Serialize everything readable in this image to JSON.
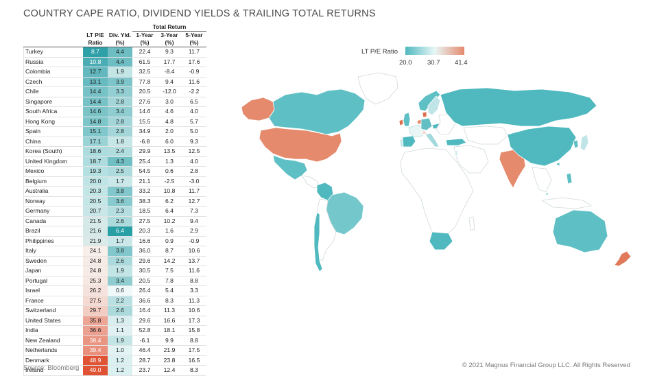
{
  "title": "COUNTRY CAPE RATIO, DIVIDEND YIELDS & TRAILING TOTAL RETURNS",
  "source": "Source: Bloomberg",
  "copyright": "© 2021 Magnus Financial Group LLC. All Rights Reserved",
  "table": {
    "group_header": "Total Return",
    "headers": {
      "pe_line1": "LT P/E",
      "pe_line2": "Ratio",
      "div_line1": "Div. Yld.",
      "div_line2": "(%)",
      "y1_line1": "1-Year",
      "y1_line2": "(%)",
      "y3_line1": "3-Year",
      "y3_line2": "(%)",
      "y5_line1": "5-Year",
      "y5_line2": "(%)"
    },
    "rows": [
      {
        "country": "Turkey",
        "pe": "8.7",
        "div": "4.4",
        "y1": "22.4",
        "y3": "9.3",
        "y5": "11.7"
      },
      {
        "country": "Russia",
        "pe": "10.8",
        "div": "4.4",
        "y1": "61.5",
        "y3": "17.7",
        "y5": "17.6"
      },
      {
        "country": "Colombia",
        "pe": "12.7",
        "div": "1.9",
        "y1": "32.5",
        "y3": "-8.4",
        "y5": "-0.9"
      },
      {
        "country": "Czech",
        "pe": "13.1",
        "div": "3.9",
        "y1": "77.8",
        "y3": "9.4",
        "y5": "11.6"
      },
      {
        "country": "Chile",
        "pe": "14.4",
        "div": "3.3",
        "y1": "20.5",
        "y3": "-12.0",
        "y5": "-2.2"
      },
      {
        "country": "Singapore",
        "pe": "14.4",
        "div": "2.8",
        "y1": "27.6",
        "y3": "3.0",
        "y5": "6.5"
      },
      {
        "country": "South Africa",
        "pe": "14.6",
        "div": "3.4",
        "y1": "14.6",
        "y3": "4.6",
        "y5": "4.0"
      },
      {
        "country": "Hong Kong",
        "pe": "14.8",
        "div": "2.8",
        "y1": "15.5",
        "y3": "4.8",
        "y5": "5.7"
      },
      {
        "country": "Spain",
        "pe": "15.1",
        "div": "2.8",
        "y1": "34.9",
        "y3": "2.0",
        "y5": "5.0"
      },
      {
        "country": "China",
        "pe": "17.1",
        "div": "1.8",
        "y1": "-6.8",
        "y3": "6.0",
        "y5": "9.3"
      },
      {
        "country": "Korea (South)",
        "pe": "18.6",
        "div": "2.4",
        "y1": "29.9",
        "y3": "13.5",
        "y5": "12.5"
      },
      {
        "country": "United Kingdom",
        "pe": "18.7",
        "div": "4.3",
        "y1": "25.4",
        "y3": "1.3",
        "y5": "4.0"
      },
      {
        "country": "Mexico",
        "pe": "19.3",
        "div": "2.5",
        "y1": "54.5",
        "y3": "0.6",
        "y5": "2.8"
      },
      {
        "country": "Belgium",
        "pe": "20.0",
        "div": "1.7",
        "y1": "21.1",
        "y3": "-2.5",
        "y5": "-3.0"
      },
      {
        "country": "Australia",
        "pe": "20.3",
        "div": "3.8",
        "y1": "33.2",
        "y3": "10.8",
        "y5": "11.7"
      },
      {
        "country": "Norway",
        "pe": "20.5",
        "div": "3.6",
        "y1": "38.3",
        "y3": "6.2",
        "y5": "12.7"
      },
      {
        "country": "Germany",
        "pe": "20.7",
        "div": "2.3",
        "y1": "18.5",
        "y3": "6.4",
        "y5": "7.3"
      },
      {
        "country": "Canada",
        "pe": "21.5",
        "div": "2.6",
        "y1": "27.5",
        "y3": "10.2",
        "y5": "9.4"
      },
      {
        "country": "Brazil",
        "pe": "21.6",
        "div": "6.4",
        "y1": "20.3",
        "y3": "1.6",
        "y5": "2.9"
      },
      {
        "country": "Philippines",
        "pe": "21.9",
        "div": "1.7",
        "y1": "16.6",
        "y3": "0.9",
        "y5": "-0.9"
      },
      {
        "country": "Italy",
        "pe": "24.1",
        "div": "3.8",
        "y1": "36.0",
        "y3": "8.7",
        "y5": "10.6"
      },
      {
        "country": "Sweden",
        "pe": "24.8",
        "div": "2.6",
        "y1": "29.6",
        "y3": "14.2",
        "y5": "13.7"
      },
      {
        "country": "Japan",
        "pe": "24.8",
        "div": "1.9",
        "y1": "30.5",
        "y3": "7.5",
        "y5": "11.6"
      },
      {
        "country": "Portugal",
        "pe": "25.3",
        "div": "3.4",
        "y1": "20.5",
        "y3": "7.8",
        "y5": "8.8"
      },
      {
        "country": "Israel",
        "pe": "26.2",
        "div": "0.6",
        "y1": "26.4",
        "y3": "5.4",
        "y5": "3.3"
      },
      {
        "country": "France",
        "pe": "27.5",
        "div": "2.2",
        "y1": "36.6",
        "y3": "8.3",
        "y5": "11.3"
      },
      {
        "country": "Switzerland",
        "pe": "29.7",
        "div": "2.6",
        "y1": "16.4",
        "y3": "11.3",
        "y5": "10.6"
      },
      {
        "country": "United States",
        "pe": "35.8",
        "div": "1.3",
        "y1": "29.6",
        "y3": "16.6",
        "y5": "17.3"
      },
      {
        "country": "India",
        "pe": "36.6",
        "div": "1.1",
        "y1": "52.8",
        "y3": "18.1",
        "y5": "15.8"
      },
      {
        "country": "New Zealand",
        "pe": "38.4",
        "div": "1.9",
        "y1": "-6.1",
        "y3": "9.9",
        "y5": "8.8"
      },
      {
        "country": "Netherlands",
        "pe": "39.4",
        "div": "1.0",
        "y1": "46.4",
        "y3": "21.9",
        "y5": "17.5"
      },
      {
        "country": "Denmark",
        "pe": "48.9",
        "div": "1.2",
        "y1": "28.7",
        "y3": "23.8",
        "y5": "16.5"
      },
      {
        "country": "Ireland",
        "pe": "49.0",
        "div": "1.2",
        "y1": "23.7",
        "y3": "12.4",
        "y5": "8.3"
      }
    ]
  },
  "map_legend": {
    "title": "LT P/E Ratio",
    "ticks": [
      "20.0",
      "30.7",
      "41.4"
    ],
    "min": 20.0,
    "mid": 30.7,
    "max": 41.4,
    "colors": {
      "low": "#4fb9bf",
      "mid": "#e8f6f6",
      "high": "#e58a6d"
    }
  },
  "chart_data": {
    "type": "table",
    "title": "COUNTRY CAPE RATIO, DIVIDEND YIELDS & TRAILING TOTAL RETURNS",
    "columns": [
      "LT P/E Ratio",
      "Div. Yld. (%)",
      "1-Year (%)",
      "3-Year (%)",
      "5-Year (%)"
    ],
    "rows": [
      "Turkey",
      "Russia",
      "Colombia",
      "Czech",
      "Chile",
      "Singapore",
      "South Africa",
      "Hong Kong",
      "Spain",
      "China",
      "Korea (South)",
      "United Kingdom",
      "Mexico",
      "Belgium",
      "Australia",
      "Norway",
      "Germany",
      "Canada",
      "Brazil",
      "Philippines",
      "Italy",
      "Sweden",
      "Japan",
      "Portugal",
      "Israel",
      "France",
      "Switzerland",
      "United States",
      "India",
      "New Zealand",
      "Netherlands",
      "Denmark",
      "Ireland"
    ],
    "values": [
      [
        8.7,
        4.4,
        22.4,
        9.3,
        11.7
      ],
      [
        10.8,
        4.4,
        61.5,
        17.7,
        17.6
      ],
      [
        12.7,
        1.9,
        32.5,
        -8.4,
        -0.9
      ],
      [
        13.1,
        3.9,
        77.8,
        9.4,
        11.6
      ],
      [
        14.4,
        3.3,
        20.5,
        -12.0,
        -2.2
      ],
      [
        14.4,
        2.8,
        27.6,
        3.0,
        6.5
      ],
      [
        14.6,
        3.4,
        14.6,
        4.6,
        4.0
      ],
      [
        14.8,
        2.8,
        15.5,
        4.8,
        5.7
      ],
      [
        15.1,
        2.8,
        34.9,
        2.0,
        5.0
      ],
      [
        17.1,
        1.8,
        -6.8,
        6.0,
        9.3
      ],
      [
        18.6,
        2.4,
        29.9,
        13.5,
        12.5
      ],
      [
        18.7,
        4.3,
        25.4,
        1.3,
        4.0
      ],
      [
        19.3,
        2.5,
        54.5,
        0.6,
        2.8
      ],
      [
        20.0,
        1.7,
        21.1,
        -2.5,
        -3.0
      ],
      [
        20.3,
        3.8,
        33.2,
        10.8,
        11.7
      ],
      [
        20.5,
        3.6,
        38.3,
        6.2,
        12.7
      ],
      [
        20.7,
        2.3,
        18.5,
        6.4,
        7.3
      ],
      [
        21.5,
        2.6,
        27.5,
        10.2,
        9.4
      ],
      [
        21.6,
        6.4,
        20.3,
        1.6,
        2.9
      ],
      [
        21.9,
        1.7,
        16.6,
        0.9,
        -0.9
      ],
      [
        24.1,
        3.8,
        36.0,
        8.7,
        10.6
      ],
      [
        24.8,
        2.6,
        29.6,
        14.2,
        13.7
      ],
      [
        24.8,
        1.9,
        30.5,
        7.5,
        11.6
      ],
      [
        25.3,
        3.4,
        20.5,
        7.8,
        8.8
      ],
      [
        26.2,
        0.6,
        26.4,
        5.4,
        3.3
      ],
      [
        27.5,
        2.2,
        36.6,
        8.3,
        11.3
      ],
      [
        29.7,
        2.6,
        16.4,
        11.3,
        10.6
      ],
      [
        35.8,
        1.3,
        29.6,
        16.6,
        17.3
      ],
      [
        36.6,
        1.1,
        52.8,
        18.1,
        15.8
      ],
      [
        38.4,
        1.9,
        -6.1,
        9.9,
        8.8
      ],
      [
        39.4,
        1.0,
        46.4,
        21.9,
        17.5
      ],
      [
        48.9,
        1.2,
        28.7,
        23.8,
        16.5
      ],
      [
        49.0,
        1.2,
        23.7,
        12.4,
        8.3
      ]
    ]
  }
}
